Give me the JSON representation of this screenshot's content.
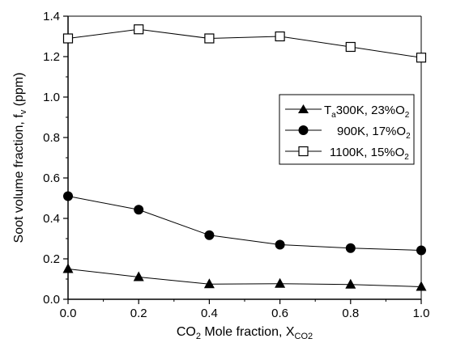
{
  "chart_data": {
    "type": "line",
    "x": [
      0.0,
      0.2,
      0.4,
      0.6,
      0.8,
      1.0
    ],
    "xlim": [
      0.0,
      1.0
    ],
    "ylim": [
      0.0,
      1.4
    ],
    "x_ticks": [
      "0.0",
      "0.2",
      "0.4",
      "0.6",
      "0.8",
      "1.0"
    ],
    "y_ticks": [
      "0.0",
      "0.2",
      "0.4",
      "0.6",
      "0.8",
      "1.0",
      "1.2",
      "1.4"
    ],
    "xlabel": {
      "pre": "CO",
      "sub": "2",
      "post": " Mole fraction, X",
      "sub2": "CO2"
    },
    "ylabel": {
      "pre": "Soot volume fraction, f",
      "sub": "v",
      "post": " (ppm)"
    },
    "grid": false,
    "legend_position": "right",
    "series": [
      {
        "marker": "triangle-filled",
        "legend": {
          "a": "T",
          "sub": "a",
          "b": "300K, 23%O",
          "sub2": "2"
        },
        "values": [
          0.15,
          0.11,
          0.075,
          0.077,
          0.073,
          0.062
        ]
      },
      {
        "marker": "circle-filled",
        "legend": {
          "a": "",
          "sub": "",
          "b": "900K, 17%O",
          "sub2": "2"
        },
        "values": [
          0.51,
          0.443,
          0.317,
          0.27,
          0.253,
          0.242
        ]
      },
      {
        "marker": "square-open",
        "legend": {
          "a": "",
          "sub": "",
          "b": "1100K, 15%O",
          "sub2": "2"
        },
        "values": [
          1.29,
          1.335,
          1.29,
          1.3,
          1.248,
          1.195
        ]
      }
    ]
  }
}
